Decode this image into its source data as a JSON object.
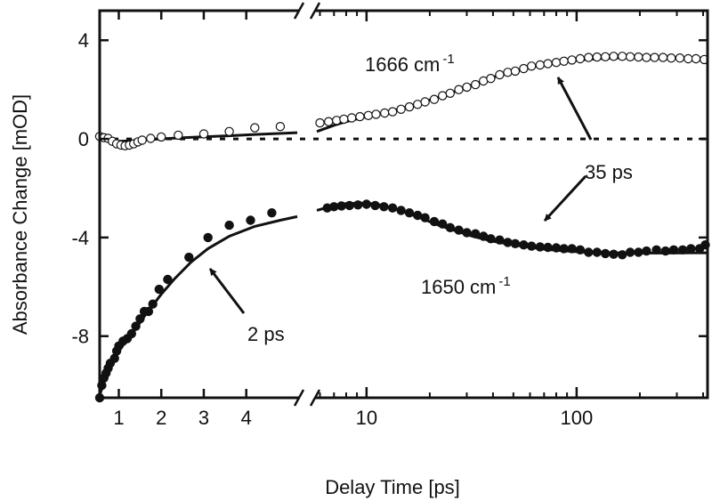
{
  "chart_data": {
    "type": "scatter",
    "xlabel": "Delay Time [ps]",
    "ylabel": "Absorbance Change [mOD]",
    "ylim": [
      -10.5,
      5.2
    ],
    "y_ticks": [
      4,
      0,
      -4,
      -8
    ],
    "y_tick_labels": [
      "4",
      "0",
      "-4",
      "-8"
    ],
    "grid": false,
    "x_axis": {
      "broken": true,
      "left_segment": {
        "scale": "linear",
        "range": [
          0.55,
          5.2
        ],
        "ticks": [
          1,
          2,
          3,
          4
        ],
        "tick_labels": [
          "1",
          "2",
          "3",
          "4"
        ]
      },
      "right_segment": {
        "scale": "log",
        "range": [
          5.8,
          420
        ],
        "ticks": [
          10,
          100
        ],
        "tick_labels": [
          "10",
          "100"
        ]
      }
    },
    "zero_line": {
      "y": 0,
      "style": "dashed"
    },
    "series": [
      {
        "name": "1666 cm-1",
        "marker": "open-circle",
        "data": [
          [
            0.55,
            0.1
          ],
          [
            0.65,
            0.05
          ],
          [
            0.75,
            0.02
          ],
          [
            0.85,
            -0.1
          ],
          [
            0.95,
            -0.2
          ],
          [
            1.05,
            -0.25
          ],
          [
            1.15,
            -0.28
          ],
          [
            1.25,
            -0.25
          ],
          [
            1.35,
            -0.2
          ],
          [
            1.45,
            -0.12
          ],
          [
            1.55,
            -0.05
          ],
          [
            1.75,
            0.02
          ],
          [
            2.0,
            0.08
          ],
          [
            2.4,
            0.15
          ],
          [
            3.0,
            0.2
          ],
          [
            3.6,
            0.3
          ],
          [
            4.2,
            0.45
          ],
          [
            4.8,
            0.5
          ],
          [
            6.0,
            0.65
          ],
          [
            6.6,
            0.7
          ],
          [
            7.2,
            0.75
          ],
          [
            7.8,
            0.8
          ],
          [
            8.5,
            0.85
          ],
          [
            9.3,
            0.9
          ],
          [
            10.2,
            0.95
          ],
          [
            11.1,
            1.0
          ],
          [
            12.2,
            1.05
          ],
          [
            13.3,
            1.1
          ],
          [
            14.6,
            1.2
          ],
          [
            16,
            1.3
          ],
          [
            17.5,
            1.4
          ],
          [
            19,
            1.5
          ],
          [
            21,
            1.6
          ],
          [
            23,
            1.75
          ],
          [
            25,
            1.85
          ],
          [
            27.5,
            2.0
          ],
          [
            30,
            2.1
          ],
          [
            33,
            2.2
          ],
          [
            36,
            2.35
          ],
          [
            39,
            2.45
          ],
          [
            43,
            2.6
          ],
          [
            47,
            2.7
          ],
          [
            51,
            2.75
          ],
          [
            56,
            2.85
          ],
          [
            61,
            2.95
          ],
          [
            67,
            3.0
          ],
          [
            73,
            3.05
          ],
          [
            80,
            3.1
          ],
          [
            87,
            3.15
          ],
          [
            95,
            3.2
          ],
          [
            104,
            3.25
          ],
          [
            114,
            3.3
          ],
          [
            125,
            3.32
          ],
          [
            137,
            3.33
          ],
          [
            150,
            3.35
          ],
          [
            165,
            3.35
          ],
          [
            180,
            3.33
          ],
          [
            197,
            3.32
          ],
          [
            215,
            3.3
          ],
          [
            235,
            3.3
          ],
          [
            258,
            3.3
          ],
          [
            282,
            3.28
          ],
          [
            310,
            3.28
          ],
          [
            340,
            3.25
          ],
          [
            370,
            3.25
          ],
          [
            405,
            3.22
          ]
        ]
      },
      {
        "name": "1650 cm-1",
        "marker": "filled-circle",
        "data": [
          [
            0.55,
            -10.5
          ],
          [
            0.6,
            -10.0
          ],
          [
            0.65,
            -9.7
          ],
          [
            0.7,
            -9.5
          ],
          [
            0.75,
            -9.3
          ],
          [
            0.8,
            -9.1
          ],
          [
            0.9,
            -8.9
          ],
          [
            0.95,
            -8.6
          ],
          [
            1.0,
            -8.4
          ],
          [
            1.1,
            -8.2
          ],
          [
            1.2,
            -8.1
          ],
          [
            1.3,
            -7.9
          ],
          [
            1.4,
            -7.6
          ],
          [
            1.5,
            -7.3
          ],
          [
            1.6,
            -7.0
          ],
          [
            1.7,
            -7.0
          ],
          [
            1.8,
            -6.7
          ],
          [
            1.95,
            -6.1
          ],
          [
            2.15,
            -5.7
          ],
          [
            2.65,
            -4.8
          ],
          [
            3.1,
            -4.0
          ],
          [
            3.6,
            -3.5
          ],
          [
            4.1,
            -3.3
          ],
          [
            4.6,
            -3.0
          ],
          [
            6.5,
            -2.8
          ],
          [
            7.0,
            -2.75
          ],
          [
            7.6,
            -2.72
          ],
          [
            8.3,
            -2.7
          ],
          [
            9.1,
            -2.68
          ],
          [
            10.0,
            -2.65
          ],
          [
            11.0,
            -2.7
          ],
          [
            12.1,
            -2.75
          ],
          [
            13.3,
            -2.8
          ],
          [
            14.6,
            -2.9
          ],
          [
            16,
            -3.0
          ],
          [
            17.5,
            -3.1
          ],
          [
            19,
            -3.2
          ],
          [
            21,
            -3.35
          ],
          [
            23,
            -3.45
          ],
          [
            25,
            -3.6
          ],
          [
            27.5,
            -3.7
          ],
          [
            30,
            -3.8
          ],
          [
            33,
            -3.85
          ],
          [
            36,
            -3.95
          ],
          [
            39,
            -4.05
          ],
          [
            43,
            -4.1
          ],
          [
            47,
            -4.2
          ],
          [
            51,
            -4.25
          ],
          [
            56,
            -4.3
          ],
          [
            61,
            -4.35
          ],
          [
            67,
            -4.38
          ],
          [
            73,
            -4.4
          ],
          [
            80,
            -4.42
          ],
          [
            87,
            -4.45
          ],
          [
            95,
            -4.45
          ],
          [
            104,
            -4.5
          ],
          [
            114,
            -4.6
          ],
          [
            125,
            -4.6
          ],
          [
            137,
            -4.65
          ],
          [
            150,
            -4.68
          ],
          [
            165,
            -4.7
          ],
          [
            180,
            -4.6
          ],
          [
            197,
            -4.6
          ],
          [
            215,
            -4.55
          ],
          [
            240,
            -4.5
          ],
          [
            265,
            -4.55
          ],
          [
            290,
            -4.5
          ],
          [
            320,
            -4.5
          ],
          [
            350,
            -4.45
          ],
          [
            385,
            -4.45
          ],
          [
            410,
            -4.3
          ]
        ]
      }
    ],
    "fit_lines": [
      {
        "for": "1666 cm-1",
        "points": [
          [
            0.55,
            0.15
          ],
          [
            0.65,
            0.05
          ],
          [
            0.8,
            -0.05
          ],
          [
            1.0,
            -0.1
          ],
          [
            1.3,
            -0.08
          ],
          [
            1.7,
            -0.03
          ],
          [
            2.2,
            0.02
          ],
          [
            2.8,
            0.07
          ],
          [
            3.5,
            0.12
          ],
          [
            4.2,
            0.18
          ],
          [
            5.2,
            0.25
          ],
          [
            5.8,
            0.3
          ],
          [
            7,
            0.55
          ],
          [
            8,
            0.7
          ],
          [
            10,
            0.9
          ],
          [
            12,
            1.05
          ],
          [
            15,
            1.25
          ],
          [
            18,
            1.45
          ],
          [
            22,
            1.7
          ],
          [
            27,
            1.95
          ],
          [
            32,
            2.2
          ],
          [
            40,
            2.5
          ],
          [
            50,
            2.75
          ],
          [
            60,
            2.9
          ],
          [
            75,
            3.05
          ],
          [
            90,
            3.15
          ],
          [
            110,
            3.22
          ],
          [
            140,
            3.28
          ],
          [
            180,
            3.3
          ],
          [
            250,
            3.3
          ],
          [
            350,
            3.28
          ],
          [
            420,
            3.27
          ]
        ]
      },
      {
        "for": "1650 cm-1",
        "points": [
          [
            0.55,
            -10.4
          ],
          [
            0.7,
            -9.6
          ],
          [
            0.85,
            -9.0
          ],
          [
            1.0,
            -8.6
          ],
          [
            1.2,
            -8.15
          ],
          [
            1.4,
            -7.7
          ],
          [
            1.6,
            -7.2
          ],
          [
            1.8,
            -6.75
          ],
          [
            2.0,
            -6.3
          ],
          [
            2.3,
            -5.7
          ],
          [
            2.7,
            -5.0
          ],
          [
            3.1,
            -4.45
          ],
          [
            3.6,
            -3.95
          ],
          [
            4.2,
            -3.55
          ],
          [
            4.8,
            -3.3
          ],
          [
            5.2,
            -3.15
          ],
          [
            5.8,
            -2.9
          ],
          [
            7,
            -2.7
          ],
          [
            8,
            -2.62
          ],
          [
            10,
            -2.6
          ],
          [
            12,
            -2.7
          ],
          [
            15,
            -2.95
          ],
          [
            18,
            -3.2
          ],
          [
            22,
            -3.5
          ],
          [
            27,
            -3.75
          ],
          [
            32,
            -3.95
          ],
          [
            40,
            -4.15
          ],
          [
            50,
            -4.3
          ],
          [
            60,
            -4.4
          ],
          [
            75,
            -4.5
          ],
          [
            90,
            -4.55
          ],
          [
            110,
            -4.6
          ],
          [
            140,
            -4.62
          ],
          [
            180,
            -4.63
          ],
          [
            250,
            -4.63
          ],
          [
            350,
            -4.62
          ],
          [
            420,
            -4.62
          ]
        ]
      }
    ],
    "annotations": [
      {
        "id": "label-1666",
        "text": "1666 cm",
        "superscript": "-1"
      },
      {
        "id": "label-1650",
        "text": "1650 cm",
        "superscript": "-1"
      },
      {
        "id": "label-35ps",
        "text": "35 ps"
      },
      {
        "id": "label-2ps",
        "text": "2 ps"
      }
    ]
  }
}
